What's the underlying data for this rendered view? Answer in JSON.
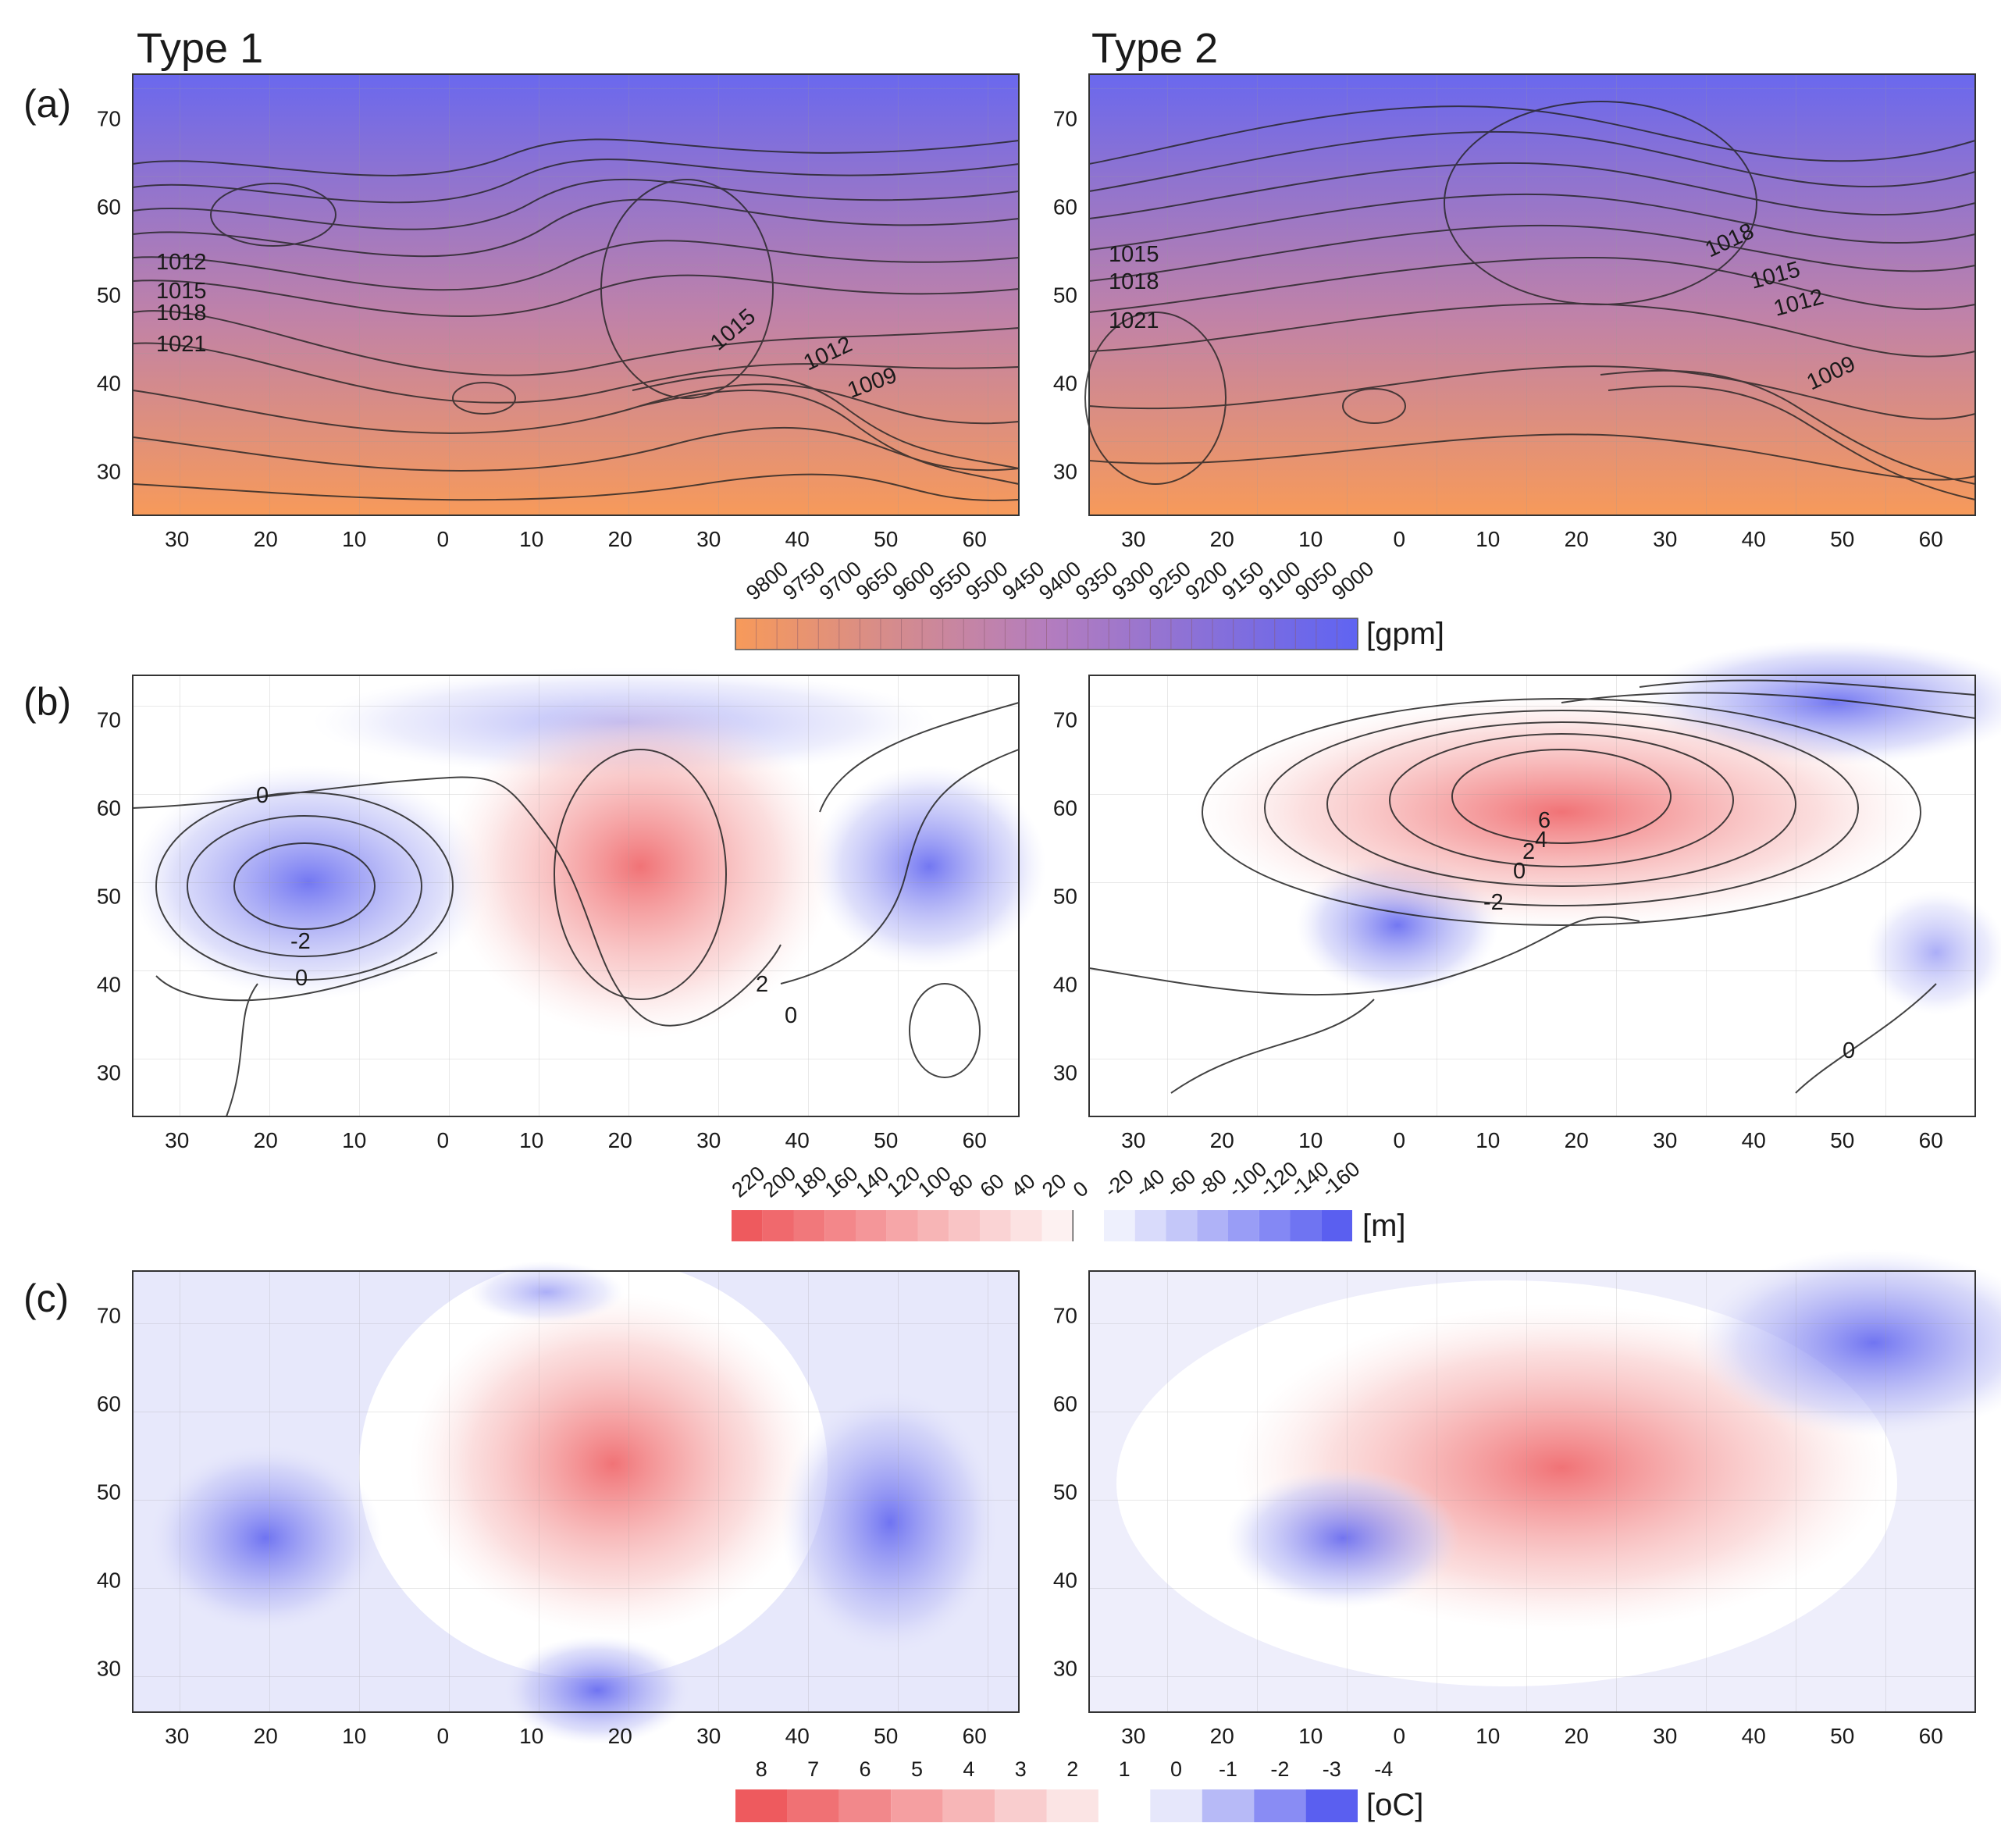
{
  "figure": {
    "columns": [
      {
        "id": "type1",
        "title": "Type 1"
      },
      {
        "id": "type2",
        "title": "Type 2"
      }
    ],
    "rows": [
      {
        "id": "a",
        "label": "(a)"
      },
      {
        "id": "b",
        "label": "(b)"
      },
      {
        "id": "c",
        "label": "(c)"
      }
    ],
    "axes": {
      "lat_ticks": [
        "70",
        "60",
        "50",
        "40",
        "30"
      ],
      "lon_ticks": [
        "30",
        "20",
        "10",
        "0",
        "10",
        "20",
        "30",
        "40",
        "50",
        "60"
      ],
      "lat_range": [
        25,
        75
      ],
      "lon_range": [
        -35,
        65
      ]
    },
    "isobar_labels": {
      "a_type1": [
        "1012",
        "1015",
        "1018",
        "1021",
        "1015",
        "1012",
        "1009"
      ],
      "a_type2": [
        "1015",
        "1018",
        "1021",
        "1018",
        "1015",
        "1012",
        "1009"
      ],
      "b_type1": [
        "0",
        "-2",
        "0",
        "2",
        "0"
      ],
      "b_type2": [
        "6",
        "4",
        "2",
        "0",
        "-2",
        "0"
      ]
    },
    "colorbars": [
      {
        "id": "gpm",
        "unit": "[gpm]",
        "labels": [
          "9800",
          "9750",
          "9700",
          "9650",
          "9600",
          "9550",
          "9500",
          "9450",
          "9400",
          "9350",
          "9300",
          "9250",
          "9200",
          "9150",
          "9100",
          "9050",
          "9000"
        ],
        "start_color": "#f79a5a",
        "end_color": "#5f64f2"
      },
      {
        "id": "m",
        "unit": "[m]",
        "labels": [
          "220",
          "200",
          "180",
          "160",
          "140",
          "120",
          "100",
          "80",
          "60",
          "40",
          "20",
          "0",
          "-20",
          "-40",
          "-60",
          "-80",
          "-100",
          "-120",
          "-140",
          "-160"
        ]
      },
      {
        "id": "c",
        "unit": "[oC]",
        "labels": [
          "8",
          "7",
          "6",
          "5",
          "4",
          "3",
          "2",
          "1",
          "0",
          "-1",
          "-2",
          "-3",
          "-4"
        ]
      }
    ],
    "colors": {
      "warm_max": "#ee5a5e",
      "cold_max": "#5a5ff0",
      "gpm_warm": "#f79a5a",
      "gpm_cold": "#5f64f2"
    }
  }
}
